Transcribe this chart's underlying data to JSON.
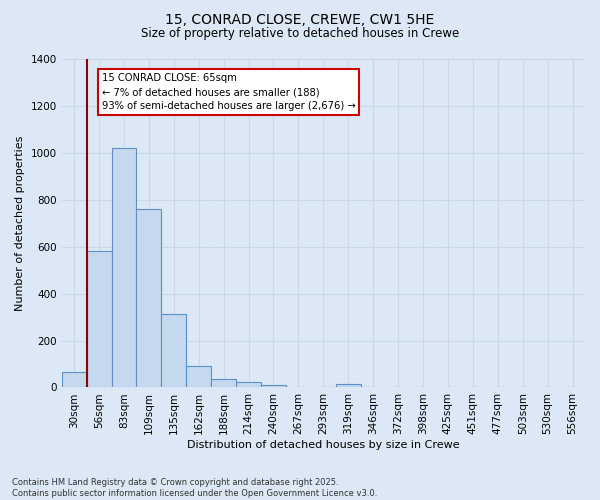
{
  "title": "15, CONRAD CLOSE, CREWE, CW1 5HE",
  "subtitle": "Size of property relative to detached houses in Crewe",
  "xlabel": "Distribution of detached houses by size in Crewe",
  "ylabel": "Number of detached properties",
  "bins": [
    "30sqm",
    "56sqm",
    "83sqm",
    "109sqm",
    "135sqm",
    "162sqm",
    "188sqm",
    "214sqm",
    "240sqm",
    "267sqm",
    "293sqm",
    "319sqm",
    "346sqm",
    "372sqm",
    "398sqm",
    "425sqm",
    "451sqm",
    "477sqm",
    "503sqm",
    "530sqm",
    "556sqm"
  ],
  "values": [
    65,
    580,
    1020,
    760,
    315,
    90,
    38,
    25,
    12,
    0,
    0,
    15,
    0,
    0,
    0,
    0,
    0,
    0,
    0,
    0,
    0
  ],
  "bar_color": "#c5d8ee",
  "bar_edge_color": "#5b8fc9",
  "annotation_text": "15 CONRAD CLOSE: 65sqm\n← 7% of detached houses are smaller (188)\n93% of semi-detached houses are larger (2,676) →",
  "annotation_box_color": "white",
  "annotation_border_color": "#cc0000",
  "red_line_color": "#8b0000",
  "ylim": [
    0,
    1400
  ],
  "yticks": [
    0,
    200,
    400,
    600,
    800,
    1000,
    1200,
    1400
  ],
  "bg_color": "#dce8f5",
  "grid_color": "#c8d8e8",
  "footer": "Contains HM Land Registry data © Crown copyright and database right 2025.\nContains public sector information licensed under the Open Government Licence v3.0.",
  "title_fontsize": 10,
  "subtitle_fontsize": 8.5,
  "tick_fontsize": 7.5,
  "ylabel_fontsize": 8,
  "xlabel_fontsize": 8
}
